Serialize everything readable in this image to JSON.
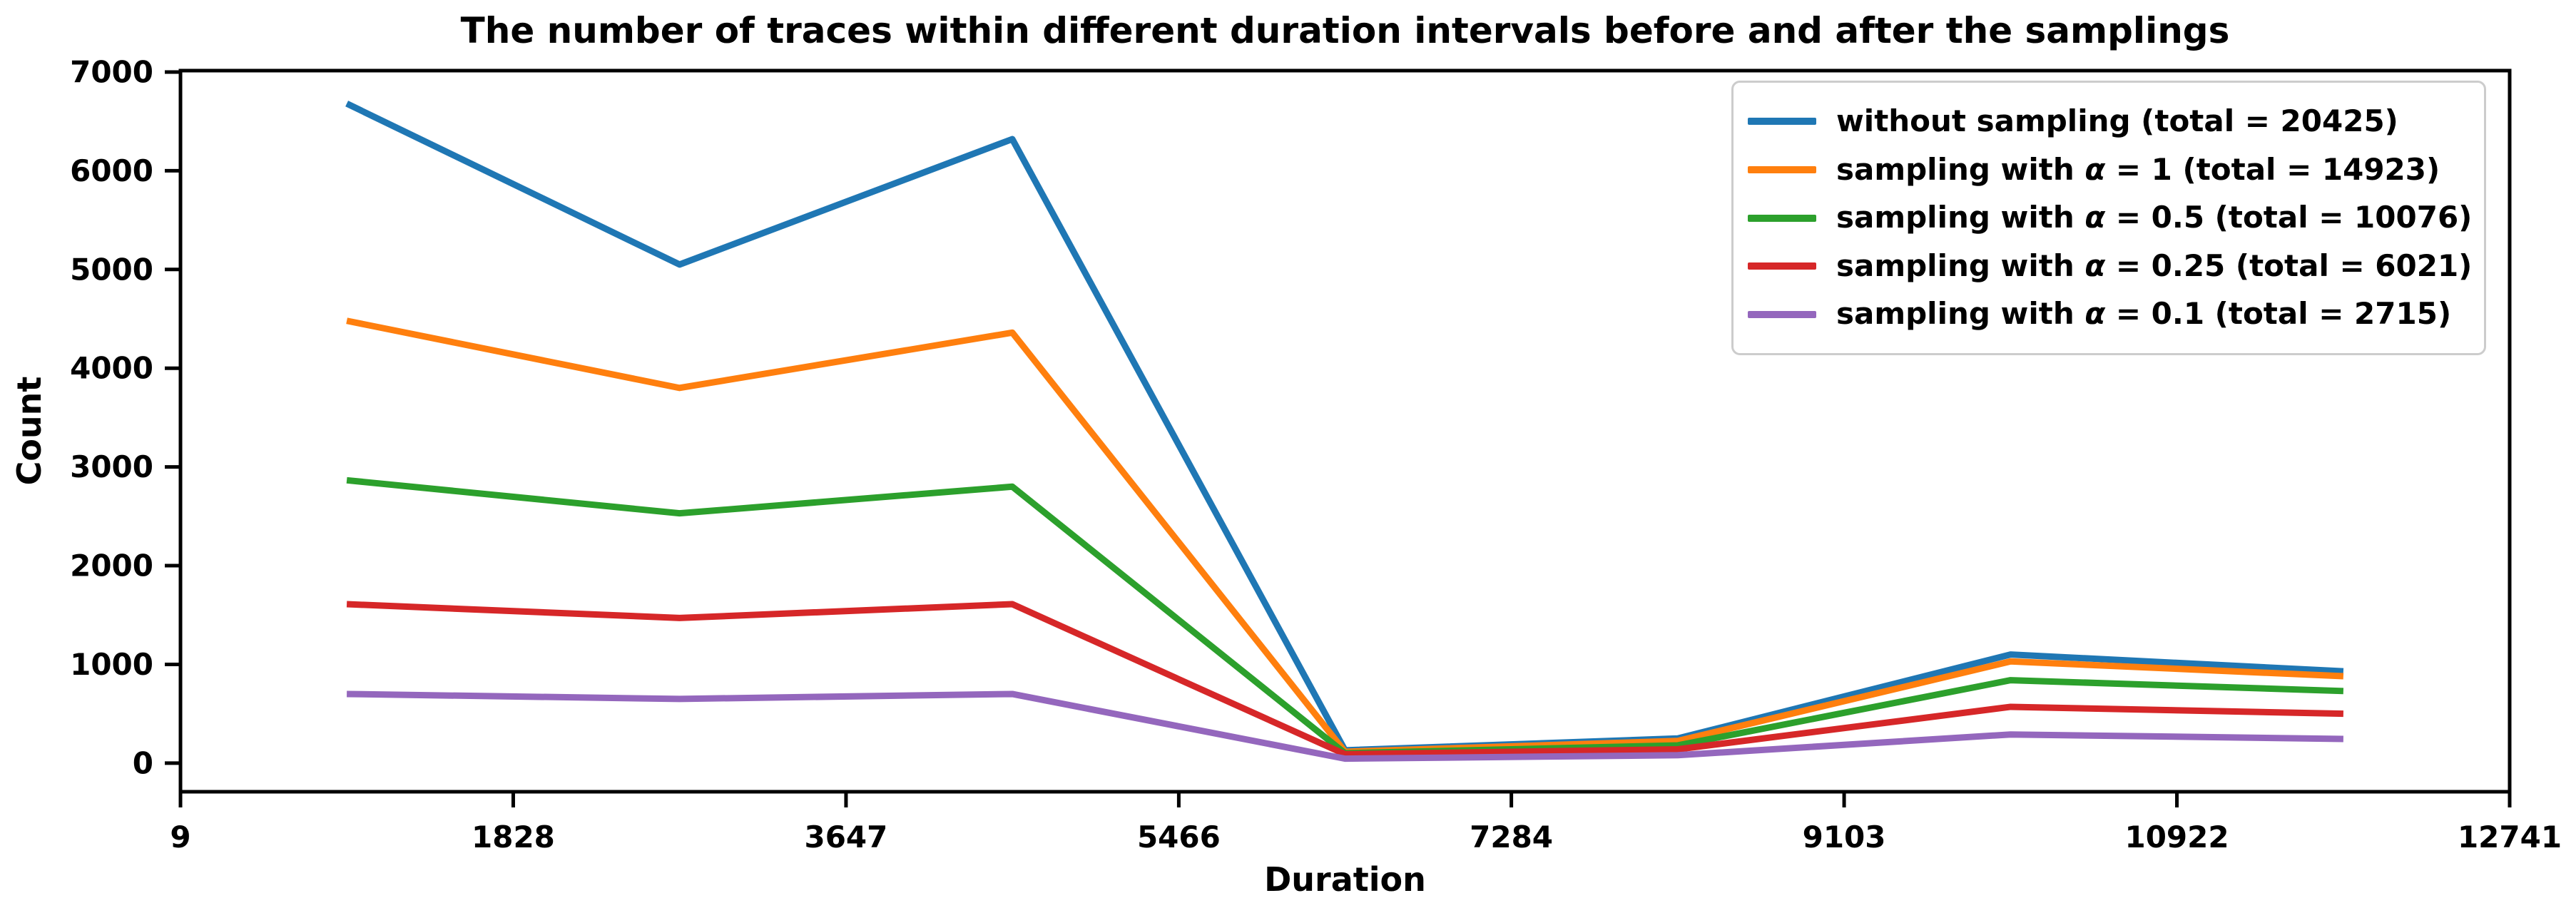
{
  "chart_data": {
    "type": "line",
    "title": "The number of traces within different duration intervals before and after the samplings",
    "xlabel": "Duration",
    "ylabel": "Count",
    "xlim": [
      9,
      12741
    ],
    "ylim": [
      -290,
      7014
    ],
    "xticks": [
      9,
      1828,
      3647,
      5466,
      7284,
      9103,
      10922,
      12741
    ],
    "yticks": [
      0,
      1000,
      2000,
      3000,
      4000,
      5000,
      6000,
      7000
    ],
    "grid": false,
    "legend_position": "upper right",
    "x": [
      918,
      2737,
      4556,
      6375,
      8194,
      10013,
      11832
    ],
    "series": [
      {
        "name": "without sampling (total = 20425)",
        "color": "#1f77b4",
        "values": [
          6680,
          5050,
          6320,
          130,
          250,
          1100,
          930
        ]
      },
      {
        "name": "sampling with α = 1 (total = 14923)",
        "color": "#ff7f0e",
        "values": [
          4480,
          3800,
          4360,
          115,
          225,
          1030,
          880
        ]
      },
      {
        "name": "sampling with α = 0.5 (total = 10076)",
        "color": "#2ca02c",
        "values": [
          2865,
          2530,
          2800,
          100,
          180,
          840,
          730
        ]
      },
      {
        "name": "sampling with α = 0.25 (total = 6021)",
        "color": "#d62728",
        "values": [
          1610,
          1470,
          1610,
          90,
          140,
          570,
          500
        ]
      },
      {
        "name": "sampling with α = 0.1 (total = 2715)",
        "color": "#9467bd",
        "values": [
          700,
          650,
          700,
          45,
          80,
          290,
          245
        ]
      }
    ],
    "axis_color": "#000000",
    "tick_font_size": 42,
    "line_width": 9
  }
}
